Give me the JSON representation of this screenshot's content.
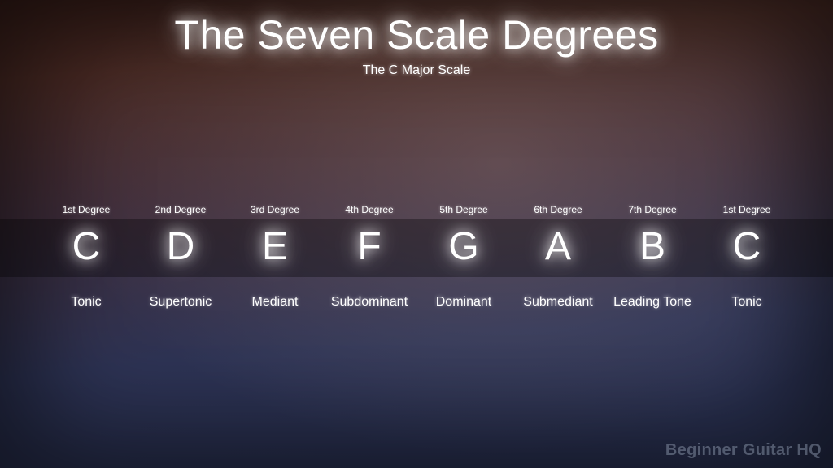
{
  "title": "The Seven Scale Degrees",
  "subtitle": "The C Major Scale",
  "watermark": "Beginner Guitar HQ",
  "style": {
    "title_fontsize": 50,
    "subtitle_fontsize": 16,
    "note_fontsize": 48,
    "degree_fontsize": 12,
    "name_fontsize": 16,
    "watermark_fontsize": 20,
    "text_color": "#ffffff",
    "glow_color": "#ffffff",
    "band_bg": "rgba(0,0,0,0.32)",
    "bg_gradient_top": "#3a1f1a",
    "bg_gradient_mid": "#3f2d3a",
    "bg_gradient_bottom": "#283050",
    "bg_radial_tint": "rgba(255,220,200,0.18)",
    "watermark_color": "rgba(130,140,160,0.55)"
  },
  "columns": [
    {
      "degree": "1st Degree",
      "note": "C",
      "name": "Tonic"
    },
    {
      "degree": "2nd Degree",
      "note": "D",
      "name": "Supertonic"
    },
    {
      "degree": "3rd Degree",
      "note": "E",
      "name": "Mediant"
    },
    {
      "degree": "4th Degree",
      "note": "F",
      "name": "Subdominant"
    },
    {
      "degree": "5th Degree",
      "note": "G",
      "name": "Dominant"
    },
    {
      "degree": "6th Degree",
      "note": "A",
      "name": "Submediant"
    },
    {
      "degree": "7th Degree",
      "note": "B",
      "name": "Leading Tone"
    },
    {
      "degree": "1st Degree",
      "note": "C",
      "name": "Tonic"
    }
  ]
}
